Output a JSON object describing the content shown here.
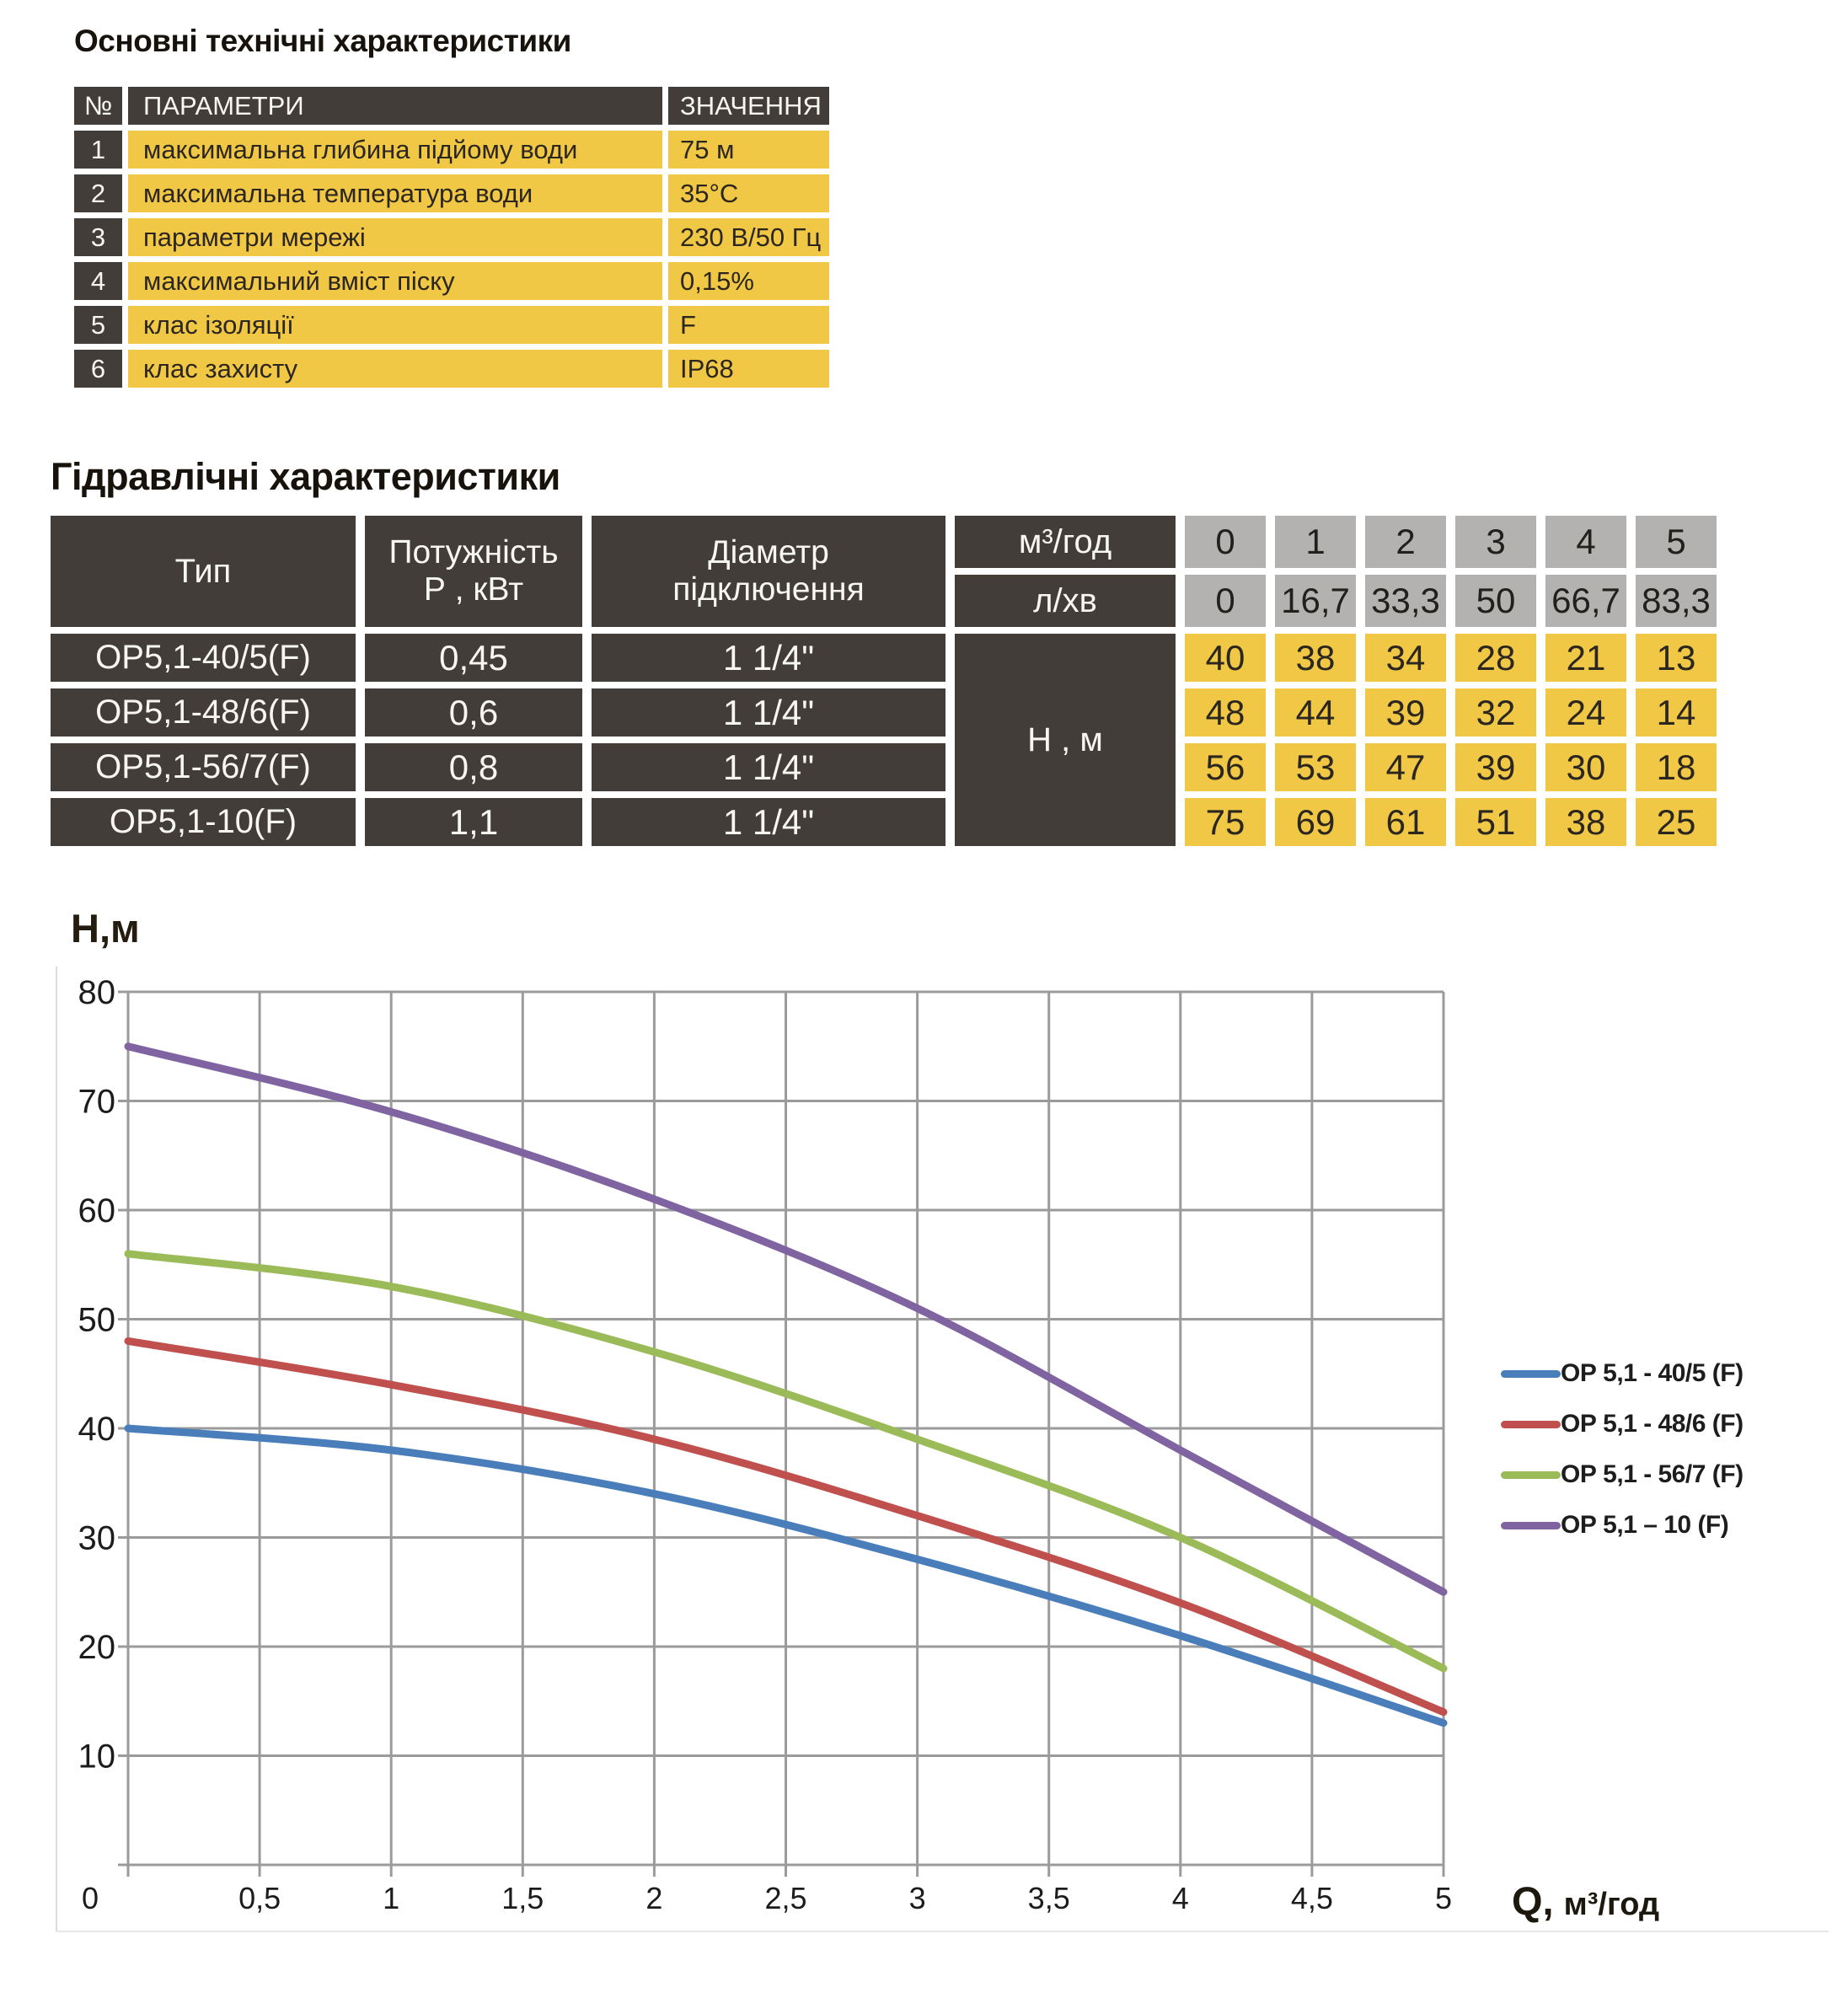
{
  "colors": {
    "dark_cell": "#423d38",
    "yellow_cell": "#f1c845",
    "gray_cell": "#b3b2b0",
    "grid_line": "#9b9b9b",
    "chart_border": "#dcdcdc"
  },
  "section1": {
    "title": "Основні технічні характеристики",
    "table": {
      "headers": {
        "num": "№",
        "param": "ПАРАМЕТРИ",
        "value": "ЗНАЧЕННЯ"
      },
      "rows": [
        {
          "num": "1",
          "param": "максимальна глибина підйому води",
          "value": "75 м"
        },
        {
          "num": "2",
          "param": "максимальна температура води",
          "value": "35°С"
        },
        {
          "num": "3",
          "param": "параметри мережі",
          "value": "230 В/50 Гц"
        },
        {
          "num": "4",
          "param": "максимальний вміст піску",
          "value": "0,15%"
        },
        {
          "num": "5",
          "param": "клас ізоляції",
          "value": "F"
        },
        {
          "num": "6",
          "param": "клас захисту",
          "value": "IP68"
        }
      ]
    }
  },
  "section2": {
    "title": "Гідравлічні характеристики",
    "table": {
      "col_type": "Тип",
      "col_power_line1": "Потужність",
      "col_power_line2": "Р , кВт",
      "col_diameter_line1": "Діаметр",
      "col_diameter_line2": "підключення",
      "flow_m3_label": "м³/год",
      "flow_m3_values": [
        "0",
        "1",
        "2",
        "3",
        "4",
        "5"
      ],
      "flow_l_label": "л/хв",
      "flow_l_values": [
        "0",
        "16,7",
        "33,3",
        "50",
        "66,7",
        "83,3"
      ],
      "head_label": "Н , м",
      "rows": [
        {
          "type": "ОР5,1-40/5(F)",
          "power": "0,45",
          "diameter": "1 1/4\"",
          "heads": [
            "40",
            "38",
            "34",
            "28",
            "21",
            "13"
          ]
        },
        {
          "type": "ОР5,1-48/6(F)",
          "power": "0,6",
          "diameter": "1 1/4\"",
          "heads": [
            "48",
            "44",
            "39",
            "32",
            "24",
            "14"
          ]
        },
        {
          "type": "ОР5,1-56/7(F)",
          "power": "0,8",
          "diameter": "1 1/4\"",
          "heads": [
            "56",
            "53",
            "47",
            "39",
            "30",
            "18"
          ]
        },
        {
          "type": "ОР5,1-10(F)",
          "power": "1,1",
          "diameter": "1 1/4\"",
          "heads": [
            "75",
            "69",
            "61",
            "51",
            "38",
            "25"
          ]
        }
      ]
    }
  },
  "chart_data": {
    "type": "line",
    "title": "",
    "ylabel": "Н,м",
    "xlabel_q": "Q,",
    "xlabel_unit": "м³/год",
    "xlim": [
      0,
      5
    ],
    "ylim": [
      0,
      80
    ],
    "grid": true,
    "legend_position": "right",
    "x": [
      0,
      1,
      2,
      3,
      4,
      5
    ],
    "series": [
      {
        "name": "ОР 5,1 - 40/5 (F)",
        "color": "#4a7ebb",
        "values": [
          40,
          38,
          34,
          28,
          21,
          13
        ]
      },
      {
        "name": "ОР 5,1 - 48/6 (F)",
        "color": "#c0504d",
        "values": [
          48,
          44,
          39,
          32,
          24,
          14
        ]
      },
      {
        "name": "ОР 5,1 - 56/7 (F)",
        "color": "#9bbb59",
        "values": [
          56,
          53,
          47,
          39,
          30,
          18
        ]
      },
      {
        "name": "ОР 5,1 – 10 (F)",
        "color": "#8064a2",
        "values": [
          75,
          69,
          61,
          51,
          38,
          25
        ]
      }
    ],
    "y_tick_values": [
      80,
      70,
      60,
      50,
      40,
      30,
      20,
      10
    ],
    "y_tick_labels": [
      "80",
      "70",
      "60",
      "50",
      "40",
      "30",
      "20",
      "10"
    ],
    "x_tick_values": [
      0,
      0.5,
      1,
      1.5,
      2,
      2.5,
      3,
      3.5,
      4,
      4.5,
      5
    ],
    "x_tick_labels": [
      "0",
      "0,5",
      "1",
      "1,5",
      "2",
      "2,5",
      "3",
      "3,5",
      "4",
      "4,5",
      "5"
    ]
  }
}
